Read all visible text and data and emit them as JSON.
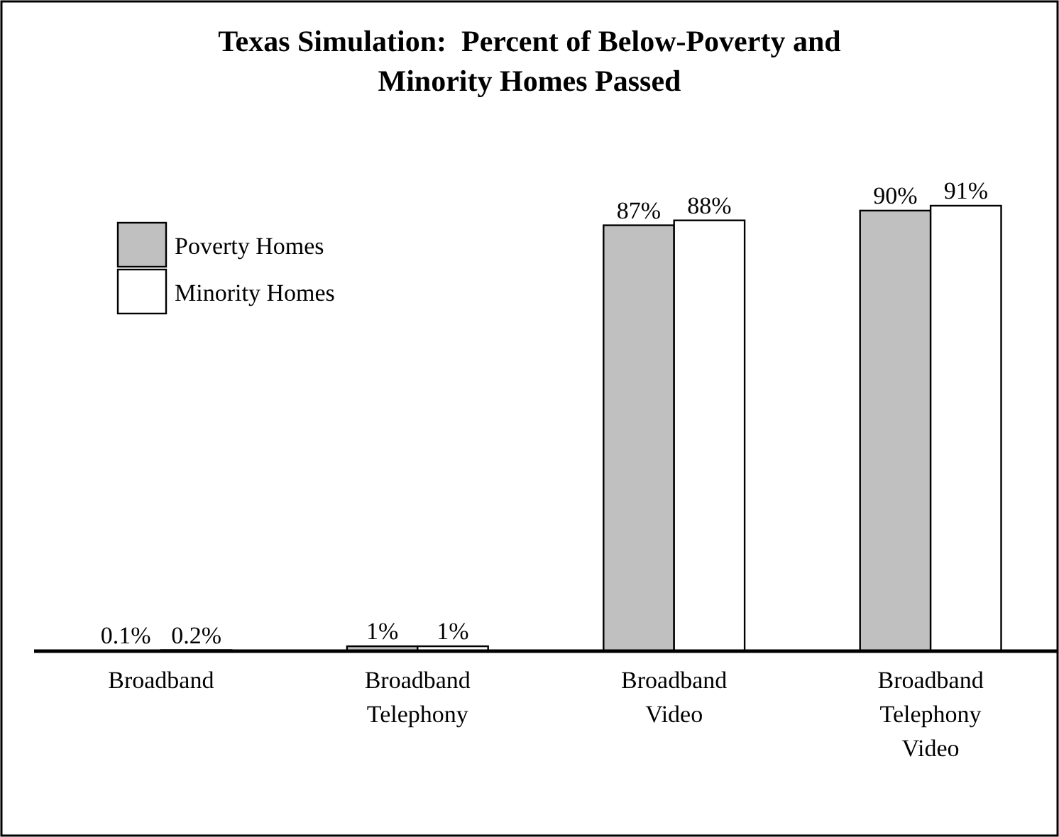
{
  "chart_data": {
    "type": "bar",
    "title": "Texas Simulation:  Percent of Below-Poverty and Minority Homes Passed",
    "categories": [
      "Broadband",
      "Broadband Telephony",
      "Broadband Video",
      "Broadband Telephony Video"
    ],
    "series": [
      {
        "name": "Poverty Homes",
        "color": "#c0c0c0",
        "values": [
          0.1,
          1,
          87,
          90
        ],
        "value_labels": [
          "0.1%",
          "1%",
          "87%",
          "90%"
        ]
      },
      {
        "name": "Minority Homes",
        "color": "#ffffff",
        "values": [
          0.2,
          1,
          88,
          91
        ],
        "value_labels": [
          "0.2%",
          "1%",
          "88%",
          "91%"
        ]
      }
    ],
    "legend": "top left"
  }
}
